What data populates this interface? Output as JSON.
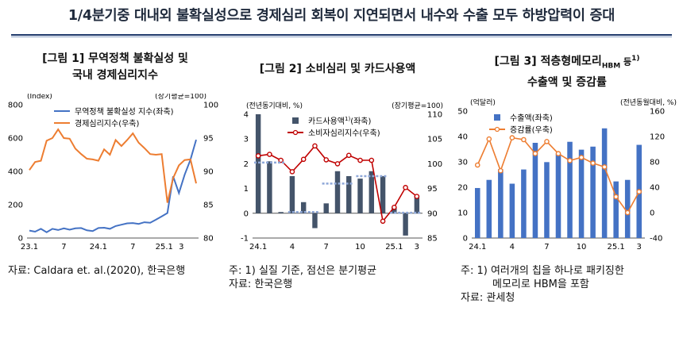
{
  "headline": "1/4분기중 대내외 불확실성으로 경제심리 회복이 지연되면서 내수와 수출 모두 하방압력이 증대",
  "panels": [
    {
      "title_line1": "[그림 1] 무역정책 불확실성 및",
      "title_line2": "국내 경제심리지수",
      "left_unit": "(Index)",
      "right_unit": "(장기평균=100)",
      "notes": [
        "자료: Caldara et. al.(2020), 한국은행"
      ]
    },
    {
      "title_line1": "[그림 2] 소비심리 및 카드사용액",
      "title_line2": "",
      "left_unit": "(전년동기대비, %)",
      "right_unit": "(장기평균=100)",
      "notes": [
        "주: 1) 실질 기준, 점선은 분기평균",
        "자료: 한국은행"
      ]
    },
    {
      "title_line1": "[그림 3] 적층형메모리",
      "title_sub": "HBM",
      "title_mid": " 등",
      "title_sup": "1)",
      "title_line2": "수출액 및 증감률",
      "left_unit": "(억달러)",
      "right_unit": "(전년동월대비, %)",
      "notes": [
        "주: 1) 여러개의 칩을 하나로 패키징한",
        "메모리로 HBM을 포함",
        "자료: 관세청"
      ]
    }
  ],
  "chart_data": [
    {
      "type": "line",
      "title": "[그림 1] 무역정책 불확실성 및 국내 경제심리지수",
      "x_tick_labels": [
        "23.1",
        "7",
        "24.1",
        "7",
        "25.1",
        "3"
      ],
      "left_axis": {
        "label": "(Index)",
        "min": 0,
        "max": 800,
        "ticks": [
          0,
          200,
          400,
          600,
          800
        ]
      },
      "right_axis": {
        "label": "(장기평균=100)",
        "min": 80,
        "max": 100,
        "ticks": [
          80,
          85,
          90,
          95,
          100
        ]
      },
      "legend_position": "top-left",
      "series": [
        {
          "name": "무역정책 불확실성 지수(좌축)",
          "axis": "left",
          "color": "#4472c4",
          "values": [
            45,
            38,
            55,
            35,
            55,
            48,
            58,
            50,
            58,
            60,
            46,
            42,
            60,
            62,
            55,
            72,
            80,
            88,
            90,
            85,
            95,
            92,
            110,
            130,
            150,
            370,
            270,
            380,
            470,
            590
          ]
        },
        {
          "name": "경제심리지수(우축)",
          "axis": "right",
          "color": "#ed7d31",
          "values": [
            90.2,
            91.4,
            91.6,
            94.6,
            95.0,
            96.3,
            95.0,
            94.9,
            93.4,
            92.6,
            91.9,
            91.8,
            91.6,
            93.3,
            92.5,
            94.7,
            93.8,
            94.7,
            95.7,
            94.3,
            93.5,
            92.6,
            92.5,
            92.6,
            85.3,
            89.0,
            90.9,
            91.7,
            91.8,
            88.2
          ]
        }
      ]
    },
    {
      "type": "bar",
      "title": "[그림 2] 소비심리 및 카드사용액",
      "x_tick_labels": [
        "24.1",
        "4",
        "7",
        "10",
        "25.1",
        "3"
      ],
      "left_axis": {
        "label": "(전년동기대비, %)",
        "min": -1,
        "max": 4,
        "ticks": [
          -1,
          0,
          1,
          2,
          3,
          4
        ]
      },
      "right_axis": {
        "label": "(장기평균=100)",
        "min": 85,
        "max": 110,
        "ticks": [
          85,
          90,
          95,
          100,
          105,
          110
        ]
      },
      "legend_position": "top-center",
      "series": [
        {
          "name": "카드사용액",
          "name_sup": "1)",
          "name_suffix": "(좌축)",
          "type": "bar",
          "axis": "left",
          "color": "#44546a",
          "values": [
            4.0,
            2.1,
            0.05,
            1.5,
            0.45,
            -0.6,
            0.4,
            1.7,
            1.5,
            1.4,
            1.7,
            1.5,
            0.25,
            -0.9,
            0.7
          ]
        },
        {
          "name": "소비자심리지수(우축)",
          "type": "line",
          "axis": "right",
          "color": "#c00000",
          "values": [
            101.6,
            101.9,
            100.7,
            98.4,
            100.9,
            103.6,
            100.8,
            100.0,
            101.7,
            100.7,
            100.7,
            88.4,
            91.2,
            95.2,
            93.4
          ]
        },
        {
          "name": "분기평균",
          "type": "quarter-average",
          "axis": "left",
          "color": "#8fa8d8",
          "values": [
            2.05,
            2.05,
            2.05,
            0.05,
            0.05,
            0.05,
            1.2,
            1.2,
            1.2,
            1.5,
            1.5,
            1.5,
            0.02,
            0.02,
            0.02
          ]
        }
      ]
    },
    {
      "type": "bar",
      "title": "[그림 3] 적층형메모리HBM 등 수출액 및 증감률",
      "x_tick_labels": [
        "24.1",
        "4",
        "7",
        "10",
        "25.1",
        "3"
      ],
      "left_axis": {
        "label": "(억달러)",
        "min": 0,
        "max": 50,
        "ticks": [
          0,
          10,
          20,
          30,
          40,
          50
        ]
      },
      "right_axis": {
        "label": "(전년동월대비, %)",
        "min": -40,
        "max": 160,
        "ticks": [
          -40,
          0,
          40,
          80,
          120,
          160
        ]
      },
      "legend_position": "top-center",
      "series": [
        {
          "name": "수출액(좌축)",
          "type": "bar",
          "axis": "left",
          "color": "#4472c4",
          "values": [
            19.7,
            22.9,
            27.1,
            21.4,
            27.0,
            37.5,
            29.9,
            33.2,
            37.9,
            34.8,
            36.0,
            43.2,
            22.3,
            22.9,
            36.7
          ]
        },
        {
          "name": "증감률(우축)",
          "type": "line",
          "axis": "right",
          "color": "#ed7d31",
          "values": [
            75,
            116,
            66,
            118,
            115,
            93,
            112,
            93,
            82,
            87,
            78,
            72,
            25,
            0,
            33
          ]
        }
      ]
    }
  ]
}
